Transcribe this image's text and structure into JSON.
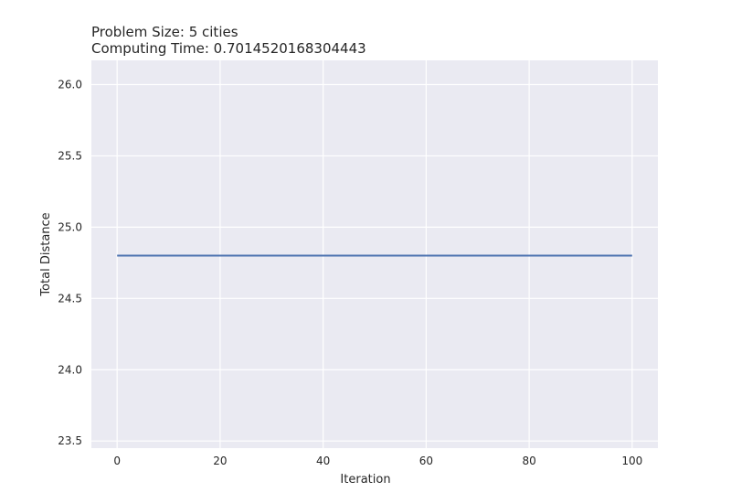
{
  "chart_data": {
    "type": "line",
    "title_lines": [
      "Problem Size: 5 cities",
      "Computing Time: 0.7014520168304443"
    ],
    "xlabel": "Iteration",
    "ylabel": "Total Distance",
    "xlim": [
      -5,
      105
    ],
    "ylim": [
      23.45,
      26.17
    ],
    "xticks": [
      0,
      20,
      40,
      60,
      80,
      100
    ],
    "xtick_labels": [
      "0",
      "20",
      "40",
      "60",
      "80",
      "100"
    ],
    "yticks": [
      23.5,
      24.0,
      24.5,
      25.0,
      25.5,
      26.0
    ],
    "ytick_labels": [
      "23.5",
      "24.0",
      "24.5",
      "25.0",
      "25.5",
      "26.0"
    ],
    "grid": true,
    "series": [
      {
        "x": [
          0,
          100
        ],
        "y": [
          24.8,
          24.8
        ],
        "color": "#4c72b0"
      }
    ]
  }
}
